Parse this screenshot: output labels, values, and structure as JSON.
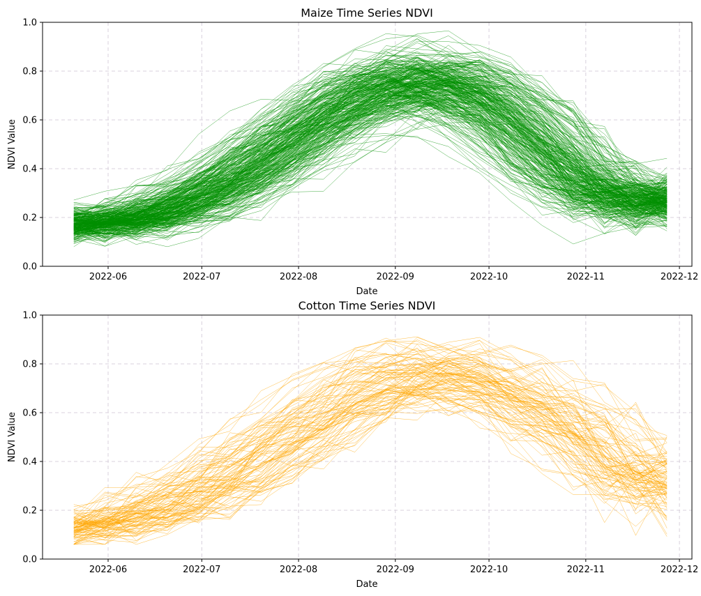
{
  "chart_data": [
    {
      "type": "line",
      "title": "Maize Time Series NDVI",
      "xlabel": "Date",
      "ylabel": "NDVI Value",
      "x_ticks": [
        "2022-06",
        "2022-07",
        "2022-08",
        "2022-09",
        "2022-10",
        "2022-11",
        "2022-12"
      ],
      "y_ticks": [
        "0.0",
        "0.2",
        "0.4",
        "0.6",
        "0.8",
        "1.0"
      ],
      "xlim": [
        "2022-05-11",
        "2022-12-05"
      ],
      "ylim": [
        0,
        1
      ],
      "grid": true,
      "line_color": "#008f00",
      "series_count": 300,
      "x_dates": [
        "2022-05-21",
        "2022-05-31",
        "2022-06-10",
        "2022-06-20",
        "2022-06-30",
        "2022-07-10",
        "2022-07-20",
        "2022-07-30",
        "2022-08-09",
        "2022-08-19",
        "2022-08-29",
        "2022-09-08",
        "2022-09-18",
        "2022-09-28",
        "2022-10-08",
        "2022-10-18",
        "2022-10-28",
        "2022-11-07",
        "2022-11-17",
        "2022-11-27"
      ],
      "mean_profile": [
        0.17,
        0.17,
        0.19,
        0.23,
        0.28,
        0.35,
        0.43,
        0.52,
        0.61,
        0.69,
        0.74,
        0.76,
        0.74,
        0.69,
        0.59,
        0.47,
        0.36,
        0.29,
        0.25,
        0.27
      ]
    },
    {
      "type": "line",
      "title": "Cotton Time Series NDVI",
      "xlabel": "Date",
      "ylabel": "NDVI Value",
      "x_ticks": [
        "2022-06",
        "2022-07",
        "2022-08",
        "2022-09",
        "2022-10",
        "2022-11",
        "2022-12"
      ],
      "y_ticks": [
        "0.0",
        "0.2",
        "0.4",
        "0.6",
        "0.8",
        "1.0"
      ],
      "xlim": [
        "2022-05-11",
        "2022-12-05"
      ],
      "ylim": [
        0,
        1
      ],
      "grid": true,
      "line_color": "#ffa500",
      "series_count": 100,
      "x_dates": [
        "2022-05-21",
        "2022-05-31",
        "2022-06-10",
        "2022-06-20",
        "2022-06-30",
        "2022-07-10",
        "2022-07-20",
        "2022-07-30",
        "2022-08-09",
        "2022-08-19",
        "2022-08-29",
        "2022-09-08",
        "2022-09-18",
        "2022-09-28",
        "2022-10-08",
        "2022-10-18",
        "2022-10-28",
        "2022-11-07",
        "2022-11-17",
        "2022-11-27"
      ],
      "mean_profile": [
        0.13,
        0.14,
        0.17,
        0.22,
        0.28,
        0.35,
        0.43,
        0.51,
        0.6,
        0.68,
        0.74,
        0.77,
        0.76,
        0.72,
        0.67,
        0.6,
        0.52,
        0.42,
        0.3,
        0.3
      ]
    }
  ]
}
